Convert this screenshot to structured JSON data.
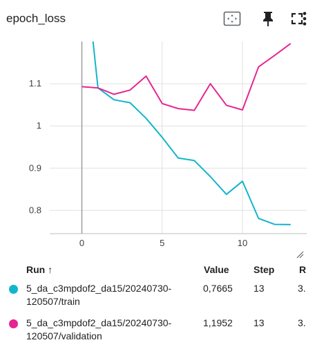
{
  "card": {
    "title": "epoch_loss",
    "icons": [
      "fit-domain-icon",
      "pin-icon",
      "fullscreen-icon",
      "more-vert-icon"
    ]
  },
  "chart_data": {
    "type": "line",
    "title": "",
    "xlabel": "",
    "ylabel": "",
    "xlim": [
      -2,
      14
    ],
    "ylim": [
      0.745,
      1.2
    ],
    "x_ticks": [
      0,
      5,
      10
    ],
    "y_ticks": [
      0.8,
      0.9,
      1,
      1.1
    ],
    "x_tick_labels": [
      "0",
      "5",
      "10"
    ],
    "y_tick_labels": [
      "0.8",
      "0.9",
      "1",
      "1.1"
    ],
    "grid": true,
    "series": [
      {
        "name": "5_da_c3mpdof2_da15/20240730-120507/train",
        "color": "#12b5cb",
        "x": [
          0,
          1,
          2,
          3,
          4,
          5,
          6,
          7,
          8,
          9,
          10,
          11,
          12,
          13
        ],
        "y": [
          1.45,
          1.09,
          1.062,
          1.055,
          1.018,
          0.973,
          0.924,
          0.918,
          0.88,
          0.838,
          0.869,
          0.781,
          0.767,
          0.7665
        ]
      },
      {
        "name": "5_da_c3mpdof2_da15/20240730-120507/validation",
        "color": "#e52592",
        "x": [
          0,
          1,
          2,
          3,
          4,
          5,
          6,
          7,
          8,
          9,
          10,
          11,
          12,
          13
        ],
        "y": [
          1.093,
          1.09,
          1.075,
          1.085,
          1.118,
          1.053,
          1.041,
          1.037,
          1.1,
          1.049,
          1.038,
          1.14,
          1.167,
          1.1952
        ]
      }
    ]
  },
  "table": {
    "headers": {
      "run": "Run ↑",
      "value": "Value",
      "step": "Step",
      "relative": "R"
    },
    "rows": [
      {
        "run_line1": "5_da_c3mpdof2_da15/20240730-",
        "run_line2": "120507/train",
        "value": "0,7665",
        "step": "13",
        "relative": "3.",
        "color": "#12b5cb"
      },
      {
        "run_line1": "5_da_c3mpdof2_da15/20240730-",
        "run_line2": "120507/validation",
        "value": "1,1952",
        "step": "13",
        "relative": "3.",
        "color": "#e52592"
      }
    ]
  }
}
